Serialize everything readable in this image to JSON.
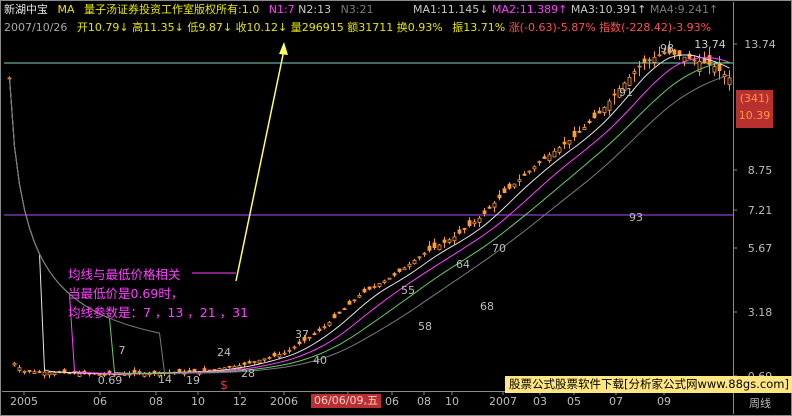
{
  "header": {
    "stock_name": "新湖中宝",
    "indicator": "MA",
    "copyright": "量子汤证券投资工作室版权所有:1.0",
    "n1": "N1:7",
    "n2": "N2:13",
    "n3": "N3:21",
    "ma1": "MA1:11.145↓",
    "ma2": "MA2:11.389↑",
    "ma3": "MA3:10.391↑",
    "ma4": "MA4:9.241↑",
    "date": "2007/10/26",
    "open": "开10.79↓",
    "high": "高11.35↓",
    "low": "低9.87↓",
    "close": "收10.12↓",
    "volume": "量296915",
    "amount": "额31711",
    "turnover": "换0.93%",
    "amplitude": "振13.71%",
    "change": "涨(-0.63)-5.87%",
    "index_change": "指数(-228.42)-3.93%"
  },
  "annotation": {
    "line1": "均线与最低价格相关",
    "line2": "当最低价是0.69时，",
    "line3": "均线参数是：7 ，13 ，21 ，31"
  },
  "watermark": "股票公式股票软件下载[分析家公式网www.88gs.com]",
  "cursor": {
    "date_badge": "06/06/09,五",
    "price_top": "(341)",
    "price_bottom": "10.39",
    "dollar_marker": "$"
  },
  "chart_data": {
    "type": "candlestick",
    "title": "",
    "y_scale": "log",
    "y_ticks": [
      "13.74",
      "8.75",
      "7.21",
      "5.67",
      "3.18",
      "0.69"
    ],
    "y_axis_footer": "周线",
    "x_tick_labels": [
      "2005",
      "06",
      "08",
      "10",
      "12",
      "2006",
      "04",
      "06",
      "08",
      "10",
      "2007",
      "03",
      "05",
      "07",
      "09"
    ],
    "horizontal_lines": [
      {
        "value": 12.9,
        "color": "#7fd3c8"
      },
      {
        "value": 7.0,
        "color": "#b04bff"
      }
    ],
    "price_labels": [
      "7",
      "0.69",
      "14",
      "19",
      "24",
      "28",
      "37",
      "40",
      "55",
      "58",
      "64",
      "68",
      "70",
      "91",
      "93",
      "98",
      "13.74"
    ],
    "ma_colors": {
      "ma1": "#e6e6e6",
      "ma2": "#ff40ff",
      "ma3": "#66cc66",
      "ma4": "#7a7a7a"
    },
    "candle_colors": {
      "up": "#ff9a3c",
      "down": "#ff9a3c"
    },
    "approx_weekly_closes_by_period": {
      "2005-06": 0.78,
      "2005-08": 0.72,
      "2005-10": 0.7,
      "2005-12": 0.73,
      "2006-01": 0.8,
      "2006-04": 1.0,
      "2006-06": 1.4,
      "2006-08": 1.9,
      "2006-10": 2.4,
      "2007-01": 3.6,
      "2007-03": 4.8,
      "2007-05": 6.5,
      "2007-07": 11.5,
      "2007-09": 12.5,
      "2007-10": 10.12
    }
  }
}
